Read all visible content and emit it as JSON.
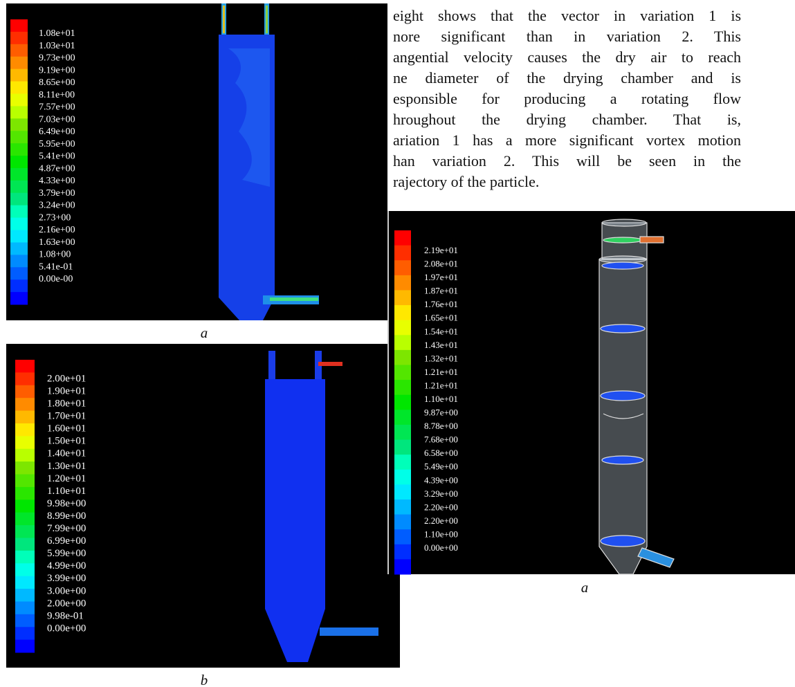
{
  "paragraph": {
    "lines": [
      "eight shows that the vector in variation 1 is",
      "nore significant than in variation 2. This",
      "angential velocity causes the dry air to reach",
      "ne diameter of the drying chamber and is",
      "esponsible for producing a rotating flow",
      "hroughout the drying chamber. That is,",
      "ariation 1 has a more significant vortex motion",
      "han variation 2. This will be seen in the",
      "rajectory of the particle."
    ]
  },
  "figures": [
    {
      "legend": [
        "1.08e+01",
        "1.03e+01",
        "9.73e+00",
        "9.19e+00",
        "8.65e+00",
        "8.11e+00",
        "7.57e+00",
        "7.03e+00",
        "6.49e+00",
        "5.95e+00",
        "5.41e+00",
        "4.87e+00",
        "4.33e+00",
        "3.79e+00",
        "3.24e+00",
        "2.73+00",
        "2.16e+00",
        "1.63e+00",
        "1.08+00",
        "5.41e-01",
        "0.00e-00"
      ],
      "caption": "a"
    },
    {
      "legend": [
        "2.00e+01",
        "1.90e+01",
        "1.80e+01",
        "1.70e+01",
        "1.60e+01",
        "1.50e+01",
        "1.40e+01",
        "1.30e+01",
        "1.20e+01",
        "1.10e+01",
        "9.98e+00",
        "8.99e+00",
        "7.99e+00",
        "6.99e+00",
        "5.99e+00",
        "4.99e+00",
        "3.99e+00",
        "3.00e+00",
        "2.00e+00",
        "9.98e-01",
        "0.00e+00"
      ],
      "caption": "b"
    },
    {
      "legend": [
        "2.19e+01",
        "2.08e+01",
        "1.97e+01",
        "1.87e+01",
        "1.76e+01",
        "1.65e+01",
        "1.54e+01",
        "1.43e+01",
        "1.32e+01",
        "1.21e+01",
        "1.21e+01",
        "1.10e+01",
        "9.87e+00",
        "8.78e+00",
        "7.68e+00",
        "6.58e+00",
        "5.49e+00",
        "4.39e+00",
        "3.29e+00",
        "2.20e+00",
        "2.20e+00",
        "1.10e+00",
        "0.00e+00"
      ],
      "caption": "a"
    }
  ]
}
